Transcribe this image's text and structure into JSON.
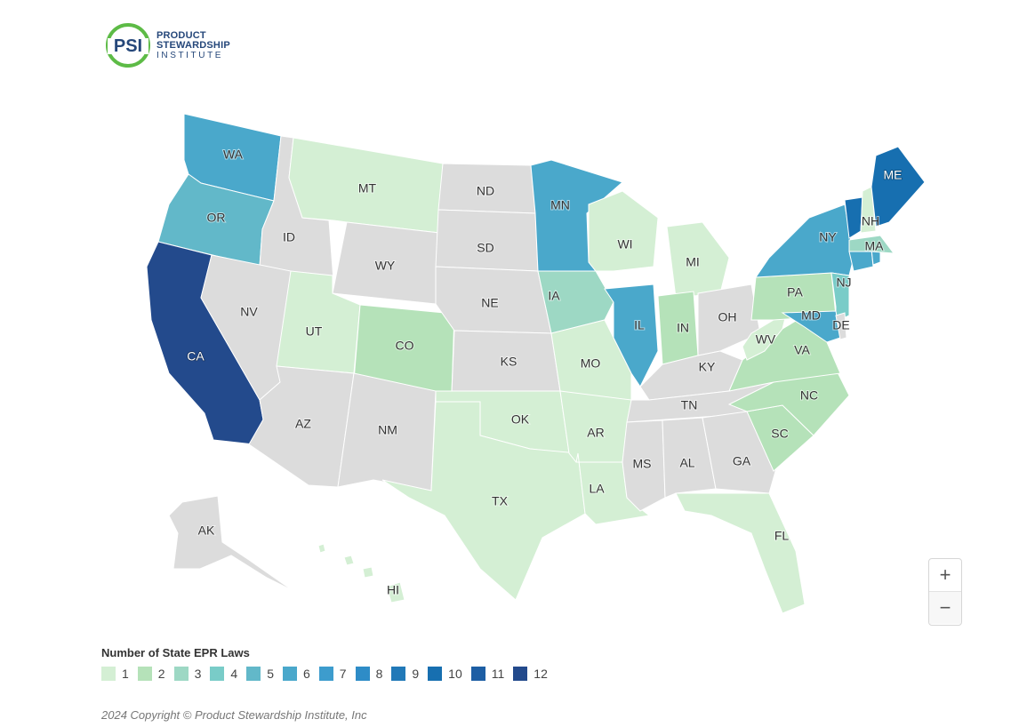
{
  "logo": {
    "line1": "PRODUCT",
    "line2": "STEWARDSHIP",
    "line3": "INSTITUTE",
    "mark_text": "PSI",
    "ring_color": "#5dbb46",
    "text_color": "#25477a"
  },
  "map": {
    "title": "Number of State EPR Laws",
    "no_data_color": "#dcdcdc",
    "states": [
      {
        "abbr": "WA",
        "value": 6
      },
      {
        "abbr": "OR",
        "value": 5
      },
      {
        "abbr": "CA",
        "value": 12
      },
      {
        "abbr": "ID",
        "value": 0
      },
      {
        "abbr": "NV",
        "value": 0
      },
      {
        "abbr": "MT",
        "value": 1
      },
      {
        "abbr": "WY",
        "value": 0
      },
      {
        "abbr": "UT",
        "value": 1
      },
      {
        "abbr": "CO",
        "value": 2
      },
      {
        "abbr": "AZ",
        "value": 0
      },
      {
        "abbr": "NM",
        "value": 0
      },
      {
        "abbr": "ND",
        "value": 0
      },
      {
        "abbr": "SD",
        "value": 0
      },
      {
        "abbr": "NE",
        "value": 0
      },
      {
        "abbr": "KS",
        "value": 0
      },
      {
        "abbr": "OK",
        "value": 1
      },
      {
        "abbr": "TX",
        "value": 1
      },
      {
        "abbr": "MN",
        "value": 6
      },
      {
        "abbr": "IA",
        "value": 3
      },
      {
        "abbr": "MO",
        "value": 1
      },
      {
        "abbr": "AR",
        "value": 1
      },
      {
        "abbr": "LA",
        "value": 1
      },
      {
        "abbr": "WI",
        "value": 1
      },
      {
        "abbr": "IL",
        "value": 6
      },
      {
        "abbr": "MI",
        "value": 1
      },
      {
        "abbr": "IN",
        "value": 2
      },
      {
        "abbr": "OH",
        "value": 0
      },
      {
        "abbr": "KY",
        "value": 0
      },
      {
        "abbr": "TN",
        "value": 0
      },
      {
        "abbr": "MS",
        "value": 0
      },
      {
        "abbr": "AL",
        "value": 0
      },
      {
        "abbr": "GA",
        "value": 0
      },
      {
        "abbr": "FL",
        "value": 1
      },
      {
        "abbr": "SC",
        "value": 2
      },
      {
        "abbr": "NC",
        "value": 2
      },
      {
        "abbr": "VA",
        "value": 2
      },
      {
        "abbr": "WV",
        "value": 1
      },
      {
        "abbr": "PA",
        "value": 2
      },
      {
        "abbr": "NY",
        "value": 6
      },
      {
        "abbr": "NJ",
        "value": 4
      },
      {
        "abbr": "MD",
        "value": 6
      },
      {
        "abbr": "DE",
        "value": 0
      },
      {
        "abbr": "CT",
        "value": 6
      },
      {
        "abbr": "RI",
        "value": 6
      },
      {
        "abbr": "MA",
        "value": 3
      },
      {
        "abbr": "VT",
        "value": 10
      },
      {
        "abbr": "NH",
        "value": 1
      },
      {
        "abbr": "ME",
        "value": 10
      },
      {
        "abbr": "AK",
        "value": 0
      },
      {
        "abbr": "HI",
        "value": 1
      }
    ]
  },
  "legend": {
    "title": "Number of State EPR Laws",
    "items": [
      {
        "label": "1",
        "color": "#d4efd4"
      },
      {
        "label": "2",
        "color": "#b5e2b9"
      },
      {
        "label": "3",
        "color": "#9dd8c4"
      },
      {
        "label": "4",
        "color": "#79ccc8"
      },
      {
        "label": "5",
        "color": "#62b8c9"
      },
      {
        "label": "6",
        "color": "#4aa8cb"
      },
      {
        "label": "7",
        "color": "#3d9ccd"
      },
      {
        "label": "8",
        "color": "#2e8cc7"
      },
      {
        "label": "9",
        "color": "#2179b8"
      },
      {
        "label": "10",
        "color": "#176fb0"
      },
      {
        "label": "11",
        "color": "#1d5ea4"
      },
      {
        "label": "12",
        "color": "#234a8c"
      }
    ]
  },
  "zoom_controls": {
    "zoom_in": "+",
    "zoom_out": "−"
  },
  "footer": {
    "copyright": "2024 Copyright © Product Stewardship Institute, Inc"
  },
  "chart_data": {
    "type": "choropleth",
    "title": "Number of State EPR Laws",
    "regions": {
      "WA": 6,
      "OR": 5,
      "CA": 12,
      "ID": 0,
      "NV": 0,
      "MT": 1,
      "WY": 0,
      "UT": 1,
      "CO": 2,
      "AZ": 0,
      "NM": 0,
      "ND": 0,
      "SD": 0,
      "NE": 0,
      "KS": 0,
      "OK": 1,
      "TX": 1,
      "MN": 6,
      "IA": 3,
      "MO": 1,
      "AR": 1,
      "LA": 1,
      "WI": 1,
      "IL": 6,
      "MI": 1,
      "IN": 2,
      "OH": 0,
      "KY": 0,
      "TN": 0,
      "MS": 0,
      "AL": 0,
      "GA": 0,
      "FL": 1,
      "SC": 2,
      "NC": 2,
      "VA": 2,
      "WV": 1,
      "PA": 2,
      "NY": 6,
      "NJ": 4,
      "MD": 6,
      "DE": 0,
      "CT": 6,
      "RI": 6,
      "MA": 3,
      "VT": 10,
      "NH": 1,
      "ME": 10,
      "AK": 0,
      "HI": 1
    },
    "legend_scale": [
      "1",
      "2",
      "3",
      "4",
      "5",
      "6",
      "7",
      "8",
      "9",
      "10",
      "11",
      "12"
    ],
    "legend_position": "bottom-left"
  }
}
